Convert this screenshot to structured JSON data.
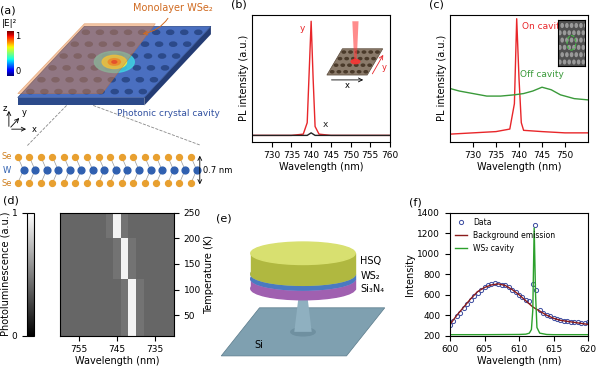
{
  "chart_data": [
    {
      "title": "(b)",
      "type": "line",
      "x_label": "Wavelength (nm)",
      "y_label": "PL intensity (a.u.)",
      "xlim": [
        725,
        760
      ],
      "xticks": [
        730,
        735,
        740,
        745,
        750,
        755,
        760
      ],
      "ylim": [
        0,
        1
      ],
      "tick_labels": "x",
      "annotations": [
        "x",
        "y"
      ],
      "series": [
        {
          "name": "y",
          "color": "#e8262a",
          "x": [
            725,
            730,
            735,
            738,
            739,
            739.5,
            740,
            740.5,
            741,
            742,
            745,
            750,
            755,
            760
          ],
          "values": [
            0.05,
            0.05,
            0.05,
            0.06,
            0.15,
            0.55,
            0.95,
            0.5,
            0.12,
            0.06,
            0.05,
            0.05,
            0.05,
            0.05
          ]
        },
        {
          "name": "x",
          "color": "#222222",
          "x": [
            725,
            730,
            735,
            739,
            740,
            741,
            745,
            750,
            755,
            760
          ],
          "values": [
            0.05,
            0.05,
            0.05,
            0.05,
            0.07,
            0.05,
            0.05,
            0.05,
            0.05,
            0.05
          ]
        }
      ]
    },
    {
      "title": "(c)",
      "type": "line",
      "x_label": "Wavelength (nm)",
      "y_label": "PL intensity (a.u.)",
      "xlim": [
        725,
        755
      ],
      "xticks": [
        730,
        735,
        740,
        745,
        750
      ],
      "ylim": [
        0,
        1
      ],
      "tick_labels": "x",
      "series": [
        {
          "name": "On cavity",
          "color": "#e8262a",
          "x": [
            725,
            730,
            735,
            738,
            739,
            739.5,
            740,
            740.5,
            741,
            745,
            750,
            755
          ],
          "values": [
            0.06,
            0.07,
            0.08,
            0.1,
            0.3,
            0.97,
            0.5,
            0.15,
            0.09,
            0.08,
            0.07,
            0.07
          ]
        },
        {
          "name": "Off cavity",
          "color": "#3a9a3a",
          "x": [
            725,
            727,
            730,
            733,
            736,
            739,
            741,
            743,
            745,
            747,
            749,
            752,
            755
          ],
          "values": [
            0.42,
            0.4,
            0.38,
            0.36,
            0.36,
            0.37,
            0.38,
            0.4,
            0.43,
            0.41,
            0.37,
            0.34,
            0.33
          ]
        }
      ]
    },
    {
      "title": "(d)",
      "type": "heatmap",
      "x_label": "Wavelength (nm)",
      "y_label": "Temperature (K)",
      "color": "gray",
      "x": [
        731,
        733,
        735,
        737,
        739,
        741,
        743,
        745,
        747,
        749,
        751,
        753,
        755,
        757,
        759
      ],
      "y": [
        20,
        60,
        100,
        140,
        180,
        220,
        250
      ],
      "values": [
        [
          0.4,
          0.4,
          0.4,
          0.4,
          0.45,
          0.95,
          0.45,
          0.4,
          0.4,
          0.4,
          0.4,
          0.4,
          0.4,
          0.4,
          0.4
        ],
        [
          0.4,
          0.4,
          0.4,
          0.4,
          0.45,
          0.95,
          0.45,
          0.4,
          0.4,
          0.4,
          0.4,
          0.4,
          0.4,
          0.4,
          0.4
        ],
        [
          0.4,
          0.4,
          0.4,
          0.4,
          0.45,
          0.95,
          0.45,
          0.4,
          0.4,
          0.4,
          0.4,
          0.4,
          0.4,
          0.4,
          0.4
        ],
        [
          0.4,
          0.4,
          0.4,
          0.4,
          0.4,
          0.45,
          0.95,
          0.45,
          0.4,
          0.4,
          0.4,
          0.4,
          0.4,
          0.4,
          0.4
        ],
        [
          0.4,
          0.4,
          0.4,
          0.4,
          0.4,
          0.45,
          0.95,
          0.45,
          0.4,
          0.4,
          0.4,
          0.4,
          0.4,
          0.4,
          0.4
        ],
        [
          0.4,
          0.4,
          0.4,
          0.4,
          0.4,
          0.4,
          0.45,
          0.95,
          0.45,
          0.4,
          0.4,
          0.4,
          0.4,
          0.4,
          0.4
        ],
        [
          0.4,
          0.4,
          0.4,
          0.4,
          0.4,
          0.4,
          0.45,
          0.95,
          0.45,
          0.4,
          0.4,
          0.4,
          0.4,
          0.4,
          0.4
        ]
      ],
      "xlim": [
        760,
        730
      ],
      "xticks": [
        755,
        745,
        735
      ],
      "ylim": [
        10,
        250
      ],
      "yticks": [
        50,
        100,
        150,
        200,
        250
      ],
      "colorbar": {
        "label": "Photoluminescence (a.u.)",
        "range": [
          0,
          1
        ],
        "ticks": [
          0,
          1
        ]
      }
    },
    {
      "title": "(f)",
      "type": "line",
      "x_label": "Wavelength (nm)",
      "y_label": "Intensity",
      "xlim": [
        600,
        620
      ],
      "xticks": [
        600,
        605,
        610,
        615,
        620
      ],
      "ylim": [
        200,
        1400
      ],
      "yticks": [
        200,
        400,
        600,
        800,
        1000,
        1200,
        1400
      ],
      "legend": "upper left",
      "series": [
        {
          "name": "Data",
          "type": "scatter",
          "marker": "circle",
          "color": "#3b4ba0",
          "x": [
            600,
            600.5,
            601,
            601.5,
            602,
            602.5,
            603,
            603.5,
            604,
            604.5,
            605,
            605.5,
            606,
            606.5,
            607,
            607.5,
            608,
            608.5,
            609,
            609.5,
            610,
            610.5,
            611,
            611.5,
            612,
            612.25,
            612.5,
            613,
            613.5,
            614,
            614.5,
            615,
            615.5,
            616,
            616.5,
            617,
            617.5,
            618,
            618.5,
            619,
            619.5,
            620
          ],
          "values": [
            300,
            340,
            390,
            420,
            470,
            510,
            550,
            590,
            620,
            650,
            670,
            690,
            700,
            710,
            700,
            690,
            690,
            670,
            650,
            630,
            600,
            580,
            550,
            540,
            700,
            1280,
            650,
            450,
            420,
            400,
            390,
            370,
            360,
            350,
            345,
            340,
            335,
            330,
            330,
            320,
            320,
            330
          ]
        },
        {
          "name": "Background emission",
          "color": "#8b1c1c",
          "x": [
            600,
            601,
            602,
            603,
            604,
            605,
            606,
            607,
            608,
            609,
            610,
            611,
            612,
            613,
            614,
            615,
            616,
            617,
            618,
            619,
            620
          ],
          "values": [
            310,
            400,
            480,
            560,
            630,
            670,
            695,
            705,
            690,
            650,
            600,
            540,
            480,
            440,
            400,
            370,
            350,
            340,
            330,
            320,
            310
          ]
        },
        {
          "name": "WS₂ cavity",
          "color": "#2ca02c",
          "x": [
            600,
            605,
            610,
            611,
            611.5,
            611.8,
            612,
            612.2,
            612.4,
            612.6,
            613,
            614,
            615,
            620
          ],
          "values": [
            210,
            210,
            212,
            215,
            225,
            260,
            450,
            1250,
            600,
            280,
            225,
            212,
            210,
            210
          ]
        }
      ]
    }
  ],
  "diagrams": {
    "a": {
      "title": "(a)",
      "layer": "Monolayer WSe₂",
      "substrate": "Photonic crystal cavity",
      "field_label": "|E|²",
      "field_max": "1",
      "field_min": "0",
      "axes": [
        "z",
        "y",
        "x"
      ],
      "atoms": [
        "Se",
        "W",
        "Se"
      ],
      "thickness": "0.7 nm"
    },
    "e": {
      "title": "(e)",
      "layers": [
        "HSQ",
        "WS₂",
        "Si₃N₄",
        "Si"
      ]
    }
  }
}
